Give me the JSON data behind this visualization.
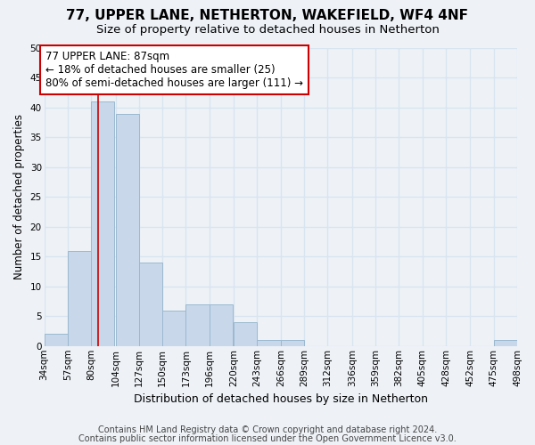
{
  "title": "77, UPPER LANE, NETHERTON, WAKEFIELD, WF4 4NF",
  "subtitle": "Size of property relative to detached houses in Netherton",
  "xlabel": "Distribution of detached houses by size in Netherton",
  "ylabel": "Number of detached properties",
  "bin_edges": [
    34,
    57,
    80,
    104,
    127,
    150,
    173,
    196,
    220,
    243,
    266,
    289,
    312,
    336,
    359,
    382,
    405,
    428,
    452,
    475,
    498
  ],
  "bin_labels": [
    "34sqm",
    "57sqm",
    "80sqm",
    "104sqm",
    "127sqm",
    "150sqm",
    "173sqm",
    "196sqm",
    "220sqm",
    "243sqm",
    "266sqm",
    "289sqm",
    "312sqm",
    "336sqm",
    "359sqm",
    "382sqm",
    "405sqm",
    "428sqm",
    "452sqm",
    "475sqm",
    "498sqm"
  ],
  "counts": [
    2,
    16,
    41,
    39,
    14,
    6,
    7,
    7,
    4,
    1,
    1,
    0,
    0,
    0,
    0,
    0,
    0,
    0,
    0,
    1,
    0
  ],
  "bar_color": "#c8d8ea",
  "bar_edge_color": "#9ab8d0",
  "property_size": 87,
  "vline_x": 87,
  "vline_color": "#cc0000",
  "annotation_line1": "77 UPPER LANE: 87sqm",
  "annotation_line2": "← 18% of detached houses are smaller (25)",
  "annotation_line3": "80% of semi-detached houses are larger (111) →",
  "annotation_box_color": "#ffffff",
  "annotation_box_edge": "#cc0000",
  "ylim": [
    0,
    50
  ],
  "yticks": [
    0,
    5,
    10,
    15,
    20,
    25,
    30,
    35,
    40,
    45,
    50
  ],
  "footnote1": "Contains HM Land Registry data © Crown copyright and database right 2024.",
  "footnote2": "Contains public sector information licensed under the Open Government Licence v3.0.",
  "background_color": "#eef2f7",
  "grid_color": "#d8e4f0",
  "title_fontsize": 11,
  "subtitle_fontsize": 9.5,
  "xlabel_fontsize": 9,
  "ylabel_fontsize": 8.5,
  "tick_fontsize": 7.5,
  "annotation_fontsize": 8.5,
  "footnote_fontsize": 7
}
